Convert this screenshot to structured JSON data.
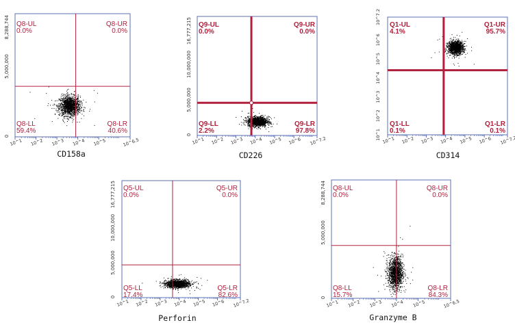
{
  "chart_data": [
    {
      "type": "scatter",
      "xlabel": "CD158a",
      "x_scale": "log",
      "x_ticks": [
        "10^1",
        "10^2",
        "10^3",
        "10^4",
        "10^5",
        "10^6.5"
      ],
      "y_ticks": [
        "8,288,744",
        "5,000,000",
        "0"
      ],
      "ylim": [
        0,
        8288744
      ],
      "quadrants": [
        {
          "name": "Q8-UL",
          "percent": "0.0%"
        },
        {
          "name": "Q8-UR",
          "percent": "0.0%"
        },
        {
          "name": "Q8-LL",
          "percent": "59.4%"
        },
        {
          "name": "Q8-LR",
          "percent": "40.6%"
        }
      ],
      "gate": {
        "x_log": 3.9,
        "y": 3400000
      },
      "population": {
        "x_log_center": 3.6,
        "x_log_spread": 0.45,
        "y_center": 2100000,
        "y_spread": 600000
      }
    },
    {
      "type": "scatter",
      "xlabel": "CD226",
      "x_scale": "log",
      "x_ticks": [
        "10^1",
        "10^2",
        "10^3",
        "10^4",
        "10^5",
        "10^6",
        "10^7.2"
      ],
      "y_ticks": [
        "16,777,215",
        "10,000,000",
        "5,000,000",
        "0"
      ],
      "ylim": [
        0,
        16777215
      ],
      "quadrants": [
        {
          "name": "Q9-UL",
          "percent": "0.0%"
        },
        {
          "name": "Q9-UR",
          "percent": "0.0%"
        },
        {
          "name": "Q9-LL",
          "percent": "2.2%"
        },
        {
          "name": "Q9-LR",
          "percent": "97.8%"
        }
      ],
      "gate": {
        "x_log": 3.8,
        "y": 4600000
      },
      "population": {
        "x_log_center": 4.1,
        "x_log_spread": 0.45,
        "y_center": 2000000,
        "y_spread": 600000
      }
    },
    {
      "type": "scatter",
      "xlabel": "CD314",
      "x_scale": "log",
      "x_ticks": [
        "10^1",
        "10^2",
        "10^3",
        "10^4",
        "10^5",
        "10^6",
        "10^7.2"
      ],
      "y_scale": "log",
      "y_ticks": [
        "10^7.2",
        "10^6",
        "10^5",
        "10^4",
        "10^3",
        "10^2",
        "10^1"
      ],
      "ylim_log": [
        1,
        7.2
      ],
      "quadrants": [
        {
          "name": "Q1-UL",
          "percent": "4.1%"
        },
        {
          "name": "Q1-UR",
          "percent": "95.7%"
        },
        {
          "name": "Q1-LL",
          "percent": "0.1%"
        },
        {
          "name": "Q1-LR",
          "percent": "0.1%"
        }
      ],
      "gate": {
        "x_log": 3.9,
        "y_log": 4.4
      },
      "population": {
        "x_log_center": 4.5,
        "x_log_spread": 0.35,
        "y_log_center": 5.6,
        "y_log_spread": 0.3
      }
    },
    {
      "type": "scatter",
      "xlabel": "Perforin",
      "x_scale": "log",
      "x_ticks": [
        "10^1",
        "10^2",
        "10^3",
        "10^4",
        "10^5",
        "10^6",
        "10^7.2"
      ],
      "y_ticks": [
        "16,777,215",
        "10,000,000",
        "5,000,000",
        "0"
      ],
      "ylim": [
        0,
        16777215
      ],
      "quadrants": [
        {
          "name": "Q5-UL",
          "percent": "0.0%"
        },
        {
          "name": "Q5-UR",
          "percent": "0.0%"
        },
        {
          "name": "Q5-LL",
          "percent": "17.4%"
        },
        {
          "name": "Q5-LR",
          "percent": "82.6%"
        }
      ],
      "gate": {
        "x_log": 3.65,
        "y": 4700000
      },
      "population": {
        "x_log_center": 3.9,
        "x_log_spread": 0.55,
        "y_center": 2000000,
        "y_spread": 500000
      }
    },
    {
      "type": "scatter",
      "xlabel": "Granzyme B",
      "x_scale": "log",
      "x_ticks": [
        "10^1",
        "10^2",
        "10^3",
        "10^4",
        "10^5",
        "10^6.5"
      ],
      "y_ticks": [
        "8,288,744",
        "5,000,000",
        "0"
      ],
      "ylim": [
        0,
        8288744
      ],
      "quadrants": [
        {
          "name": "Q8-UL",
          "percent": "0.0%"
        },
        {
          "name": "Q8-UR",
          "percent": "0.0%"
        },
        {
          "name": "Q8-LL",
          "percent": "15.7%"
        },
        {
          "name": "Q8-LR",
          "percent": "84.3%"
        }
      ],
      "gate": {
        "x_log": 4.0,
        "y": 3700000
      },
      "population": {
        "x_log_center": 3.95,
        "x_log_spread": 0.3,
        "y_center": 1800000,
        "y_spread": 1000000
      }
    }
  ]
}
